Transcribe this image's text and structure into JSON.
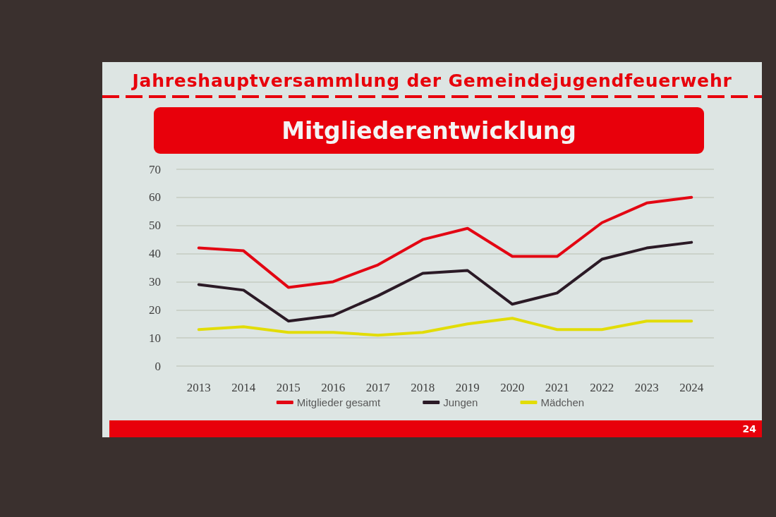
{
  "chart_data": {
    "type": "line",
    "title": "Jahreshauptversammlung der Gemeindejugendfeuerwehr",
    "subtitle": "Mitgliederentwicklung",
    "categories": [
      "2013",
      "2014",
      "2015",
      "2016",
      "2017",
      "2018",
      "2019",
      "2020",
      "2021",
      "2022",
      "2023",
      "2024"
    ],
    "series": [
      {
        "name": "Mitglieder gesamt",
        "color": "#e30613",
        "values": [
          42,
          41,
          28,
          30,
          36,
          45,
          49,
          39,
          39,
          51,
          58,
          60
        ]
      },
      {
        "name": "Jungen",
        "color": "#2b1a26",
        "values": [
          29,
          27,
          16,
          18,
          25,
          33,
          34,
          22,
          26,
          38,
          42,
          44
        ]
      },
      {
        "name": "Mädchen",
        "color": "#e2dc06",
        "values": [
          13,
          14,
          12,
          12,
          11,
          12,
          15,
          17,
          13,
          13,
          16,
          16
        ]
      }
    ],
    "ylim": [
      0,
      70
    ],
    "yticks": [
      0,
      10,
      20,
      30,
      40,
      50,
      60,
      70
    ],
    "grid": "y",
    "legend": "bottom",
    "annotations": [
      "24"
    ]
  }
}
